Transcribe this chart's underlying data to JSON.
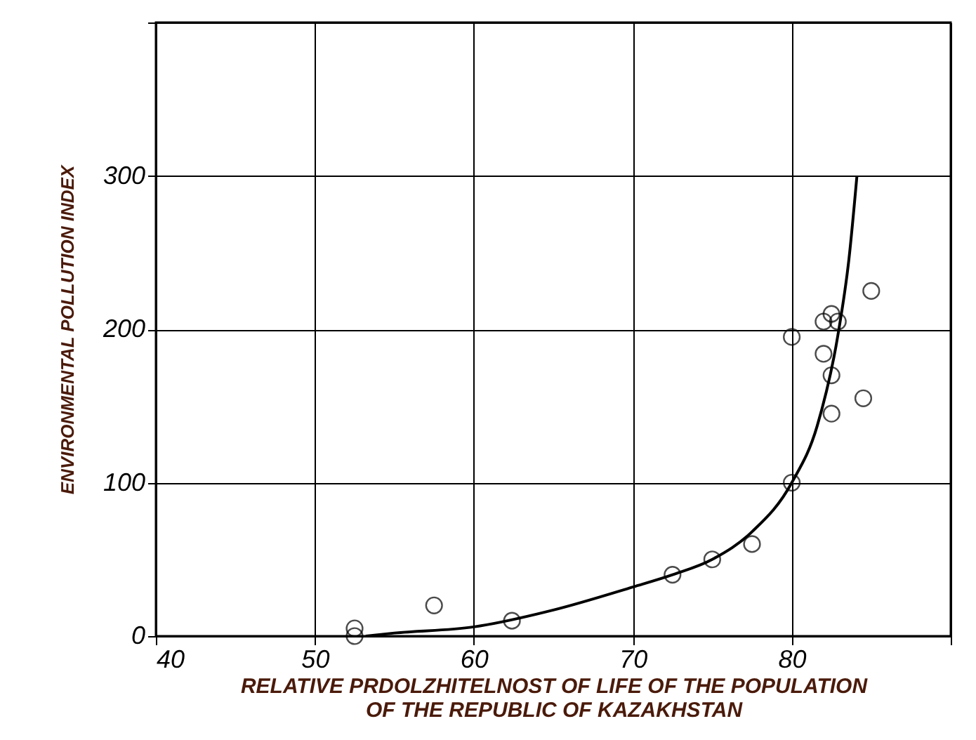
{
  "chart_data": {
    "type": "scatter",
    "xlabel": "RELATIVE PRDOLZHITELNOST OF LIFE OF THE POPULATION OF THE REPUBLIC OF KAZAKHSTAN",
    "ylabel": "ENVIRONMENTAL POLLUTION INDEX",
    "xlim": [
      40,
      90
    ],
    "xticks": [
      40,
      50,
      60,
      70,
      80,
      {
        "value": 90,
        "label": null
      }
    ],
    "ylim": [
      0,
      400
    ],
    "yticks": [
      0,
      100,
      200,
      300,
      {
        "value": 400,
        "label": null
      }
    ],
    "grid": true,
    "marker": "circle",
    "series": [
      {
        "color": "#000000",
        "x": [
          52.5,
          52.5,
          57.5,
          62.4,
          72.5,
          75.0,
          77.5,
          80.0,
          80.0,
          82.0,
          82.5,
          82.9,
          82.0,
          82.5,
          82.5,
          84.5,
          85.0
        ],
        "values": [
          5,
          0,
          20,
          10,
          40,
          50,
          60,
          100,
          195,
          205,
          210,
          205,
          184,
          170,
          145,
          155,
          225
        ]
      },
      {
        "type": "line",
        "color": "#000000",
        "marker": "none",
        "x": [
          53.2,
          55,
          60,
          65,
          70,
          72.5,
          75,
          77.5,
          80,
          81.6,
          82.9,
          83.6,
          84.1
        ],
        "values": [
          0,
          2,
          6,
          17,
          32,
          40,
          50,
          68,
          100,
          137,
          196,
          246,
          300
        ]
      }
    ]
  }
}
